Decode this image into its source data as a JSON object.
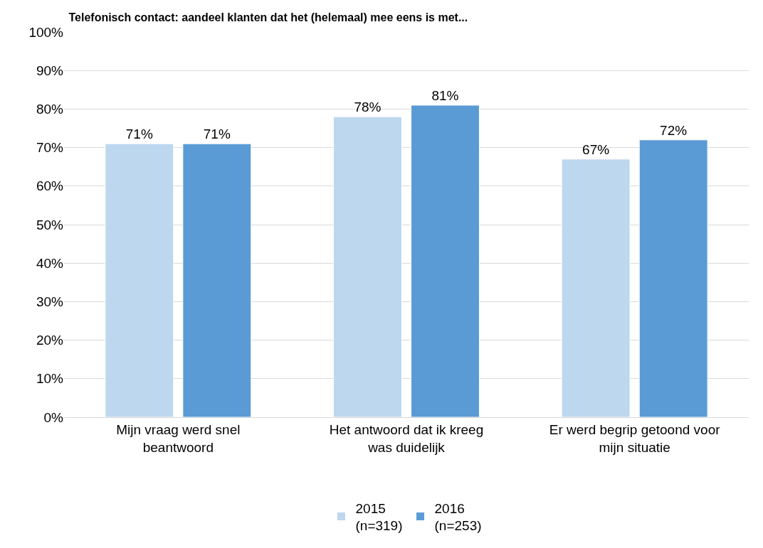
{
  "chart_data": {
    "type": "bar",
    "title": "Telefonisch contact: aandeel klanten dat het (helemaal) mee eens is met...",
    "categories": [
      "Mijn vraag werd snel\nbeantwoord",
      "Het antwoord dat ik kreeg\nwas duidelijk",
      "Er werd begrip getoond voor\nmijn situatie"
    ],
    "series": [
      {
        "name": "2015\n(n=319)",
        "color": "#bdd7ee",
        "values": [
          71,
          78,
          67
        ],
        "value_labels": [
          "71%",
          "78%",
          "67%"
        ]
      },
      {
        "name": "2016\n(n=253)",
        "color": "#5b9bd5",
        "values": [
          71,
          81,
          72
        ],
        "value_labels": [
          "71%",
          "81%",
          "72%"
        ]
      }
    ],
    "ylim": [
      0,
      100
    ],
    "yticks": [
      {
        "value": 0,
        "label": "0%"
      },
      {
        "value": 10,
        "label": "10%"
      },
      {
        "value": 20,
        "label": "20%"
      },
      {
        "value": 30,
        "label": "30%"
      },
      {
        "value": 40,
        "label": "40%"
      },
      {
        "value": 50,
        "label": "50%"
      },
      {
        "value": 60,
        "label": "60%"
      },
      {
        "value": 70,
        "label": "70%"
      },
      {
        "value": 80,
        "label": "80%"
      },
      {
        "value": 90,
        "label": "90%"
      },
      {
        "value": 100,
        "label": "100%"
      }
    ],
    "grid": "y",
    "legend": "bottom"
  }
}
